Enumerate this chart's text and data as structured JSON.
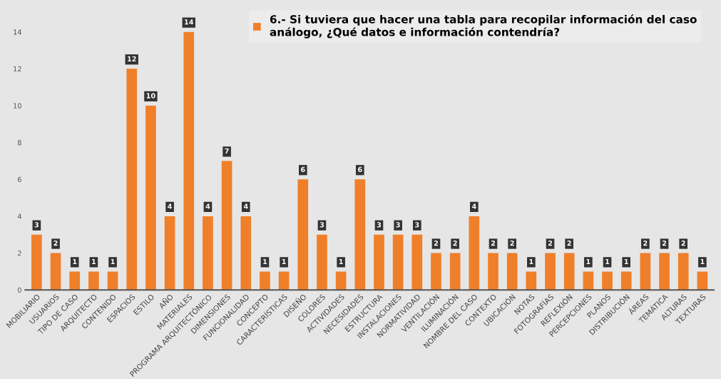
{
  "chart_data": {
    "type": "bar",
    "categories": [
      "MOBILIARIO",
      "USUARIOS",
      "TIPO DE CASO",
      "ARQUITECTO",
      "CONTENIDO",
      "ESPACIOS",
      "ESTILO",
      "AÑO",
      "MATERIALES",
      "PROGRAMA ARQUITECTÓNICO",
      "DIMENSIONES",
      "FUNCIONALIDAD",
      "CONCEPTO",
      "CARACTERÍSTICAS",
      "DISEÑO",
      "COLORES",
      "ACTIVIDADES",
      "NECESIDADES",
      "ESTRUCTURA",
      "INSTALACIONES",
      "NORMATIVIDAD",
      "VENTILACIÓN",
      "ILUMINACIÓN",
      "NOMBRE DEL CASO",
      "CONTEXTO",
      "UBICACIÓN",
      "NOTAS",
      "FOTOGRAFÍAS",
      "REFLEXIÓN",
      "PERCEPCIONES",
      "PLANOS",
      "DISTRIBUCIÓN",
      "ÁREAS",
      "TEMÁTICA",
      "ALTURAS",
      "TEXTURAS"
    ],
    "series": [
      {
        "name": "6.- Si tuviera que hacer una tabla para recopilar información del caso\nanálogo, ¿Qué datos e información contendría?",
        "color": "#f07f2a",
        "values": [
          3,
          2,
          1,
          1,
          1,
          12,
          10,
          4,
          14,
          4,
          7,
          4,
          1,
          1,
          6,
          3,
          1,
          6,
          3,
          3,
          3,
          2,
          2,
          4,
          2,
          2,
          1,
          2,
          2,
          1,
          1,
          1,
          2,
          2,
          2,
          1
        ]
      }
    ],
    "ylim": [
      0,
      14.6
    ],
    "yticks": [
      0,
      2,
      4,
      6,
      8,
      10,
      12,
      14
    ],
    "data_labels": true,
    "grid": false,
    "legend": "top right"
  }
}
